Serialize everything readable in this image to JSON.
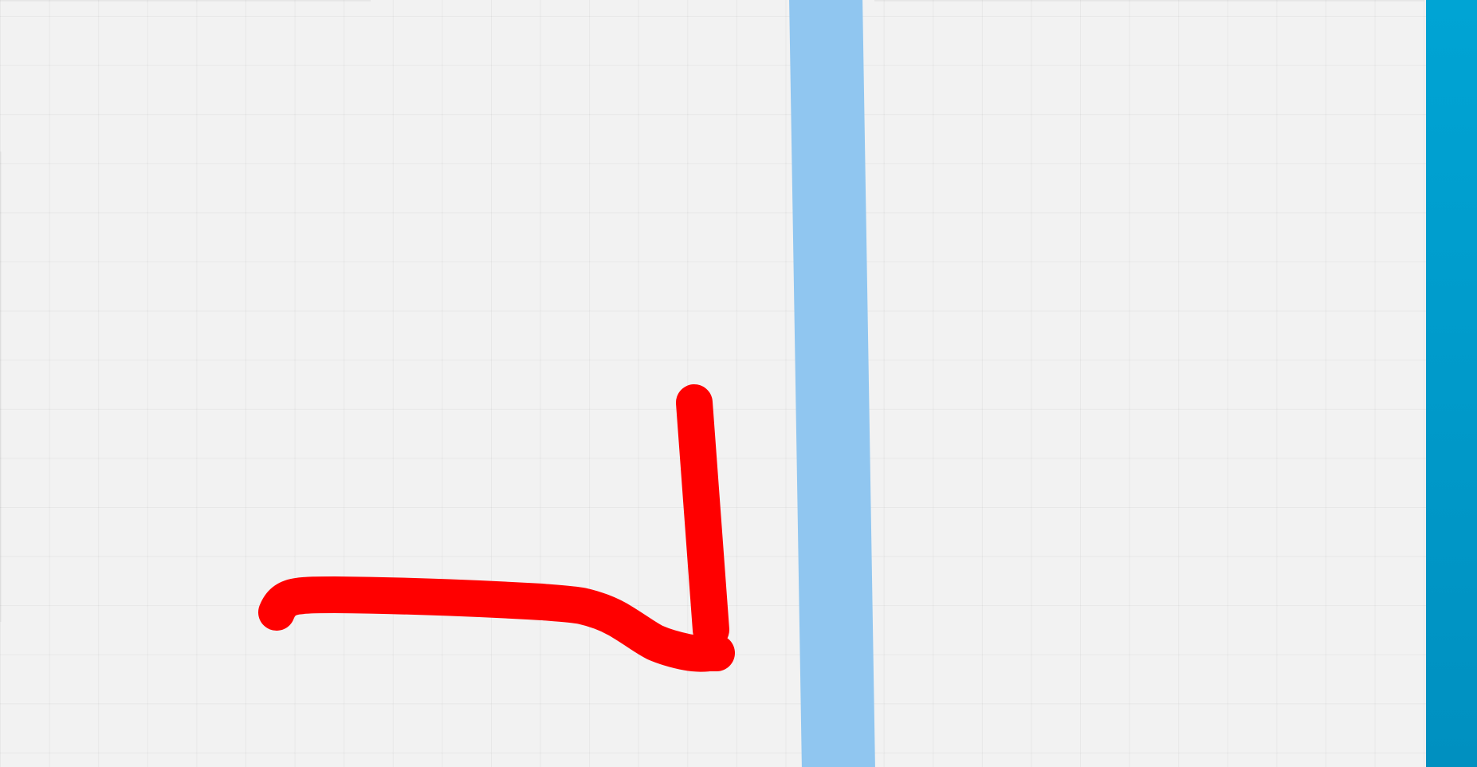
{
  "whiteboard": {
    "background_color": "#f2f2f2",
    "grid_line_color": "#e6e6e6",
    "strokes": [
      {
        "kind": "pen-stroke",
        "color": "#90c6f0",
        "description_icon": "highlighter-stroke"
      },
      {
        "kind": "pen-stroke",
        "color": "#ff0000",
        "description_icon": "pen-stroke"
      }
    ]
  },
  "side_panel": {
    "color_top": "#00a4d4",
    "color_bottom": "#0090c0"
  }
}
